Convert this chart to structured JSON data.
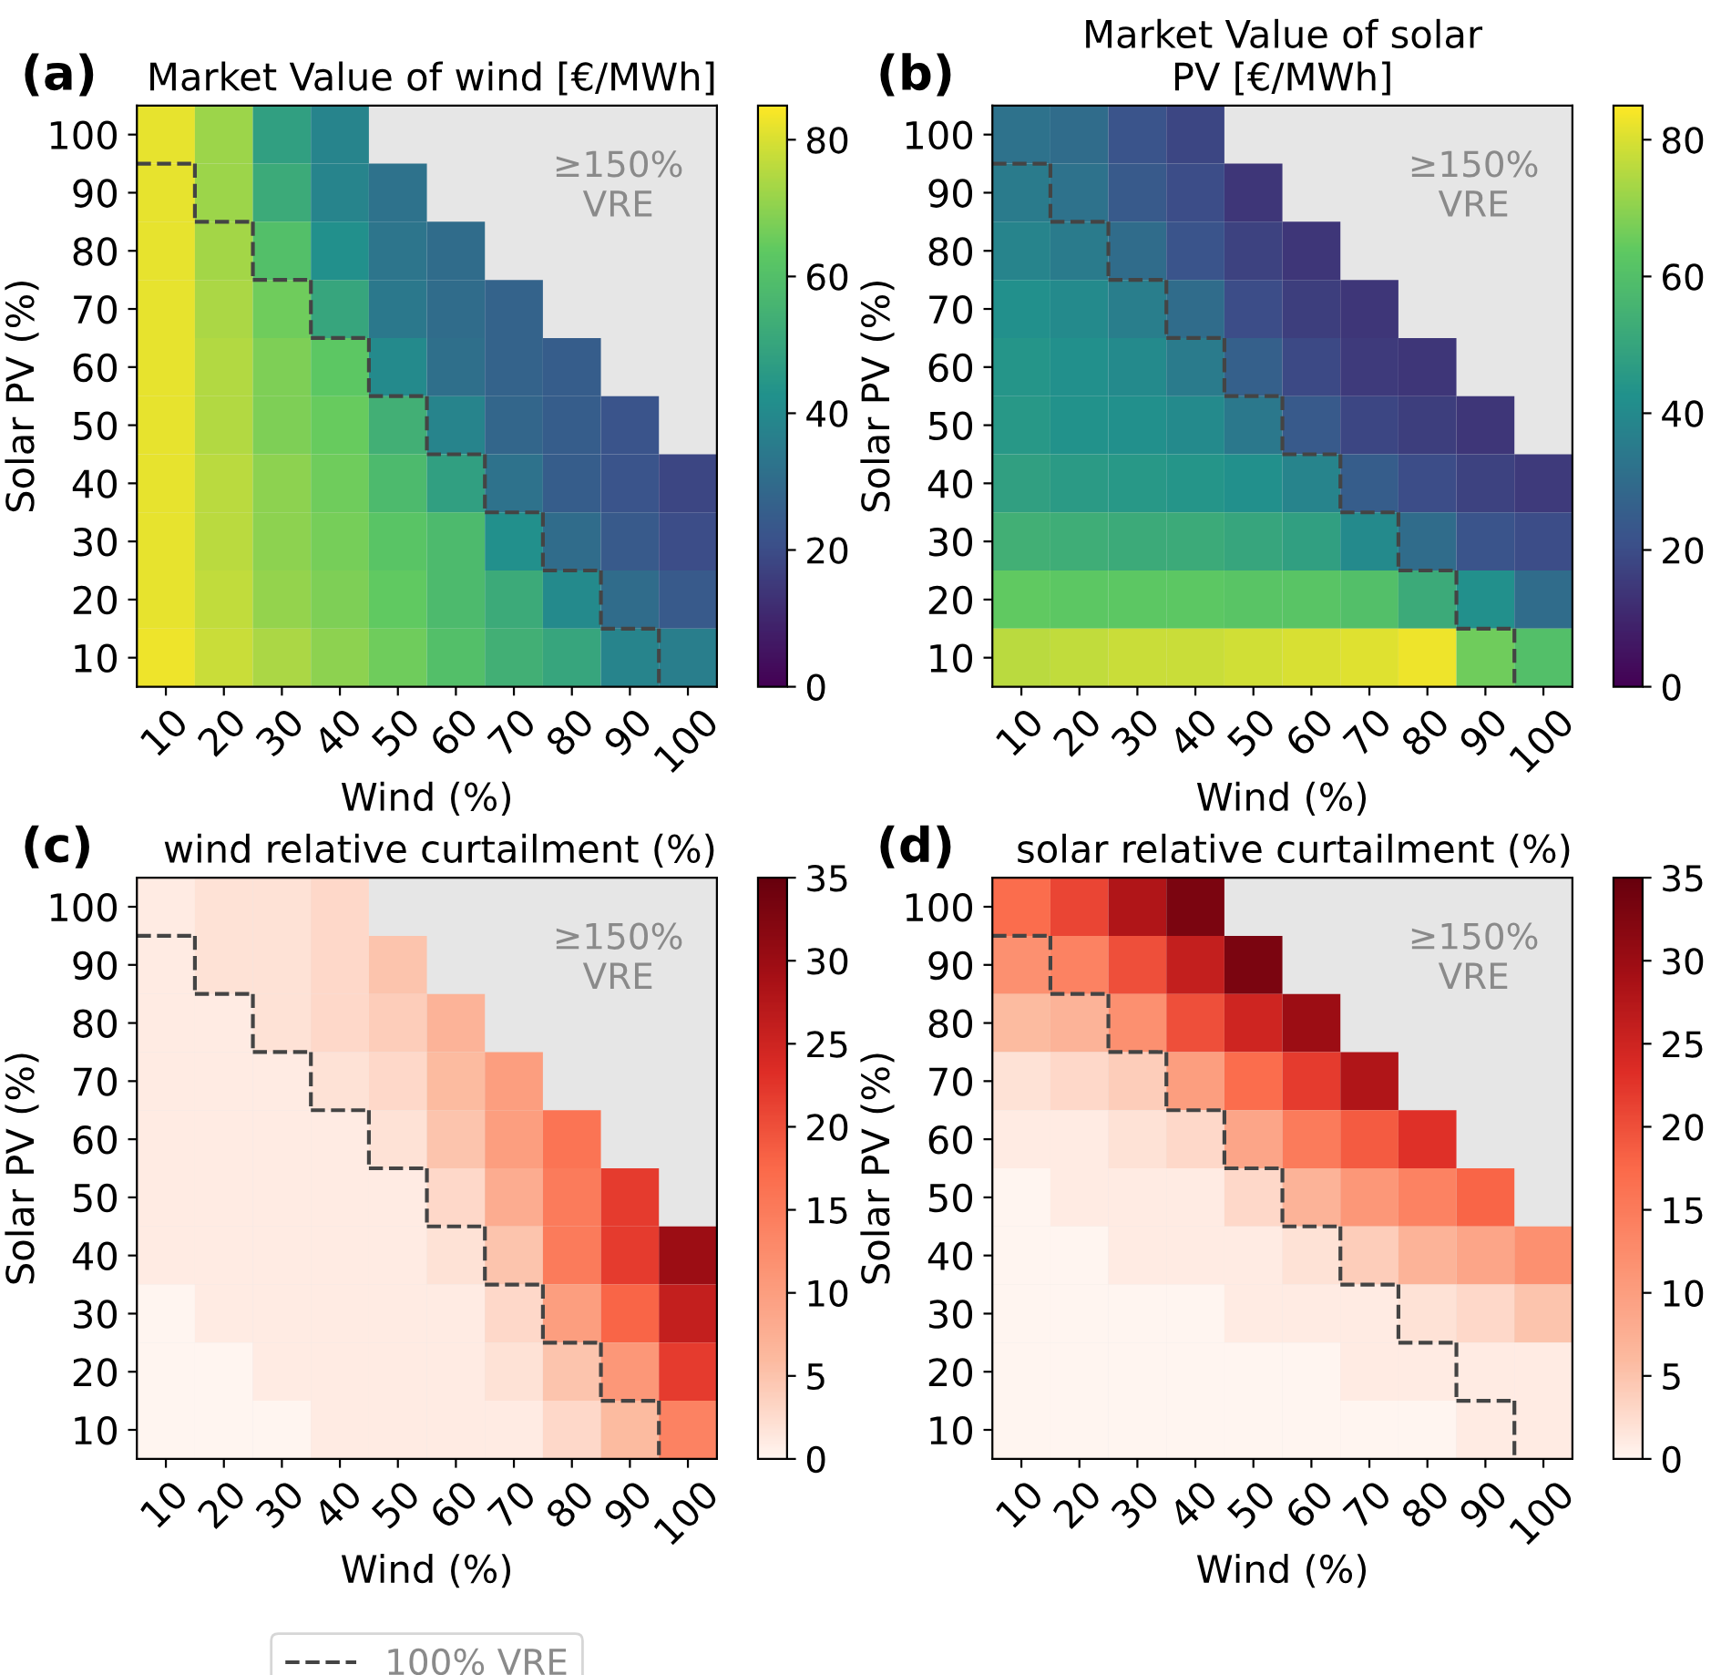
{
  "chart_data": [
    {
      "type": "heatmap",
      "title": "Market Value of wind [€/MWh]",
      "xlabel": "Wind (%)",
      "ylabel": "Solar PV (%)",
      "annotations": [
        "(a)",
        "≥150%\nVRE"
      ],
      "categories": [
        "10",
        "20",
        "30",
        "40",
        "50",
        "60",
        "70",
        "80",
        "90",
        "100"
      ],
      "y_categories": [
        "100",
        "90",
        "80",
        "70",
        "60",
        "50",
        "40",
        "30",
        "20",
        "10"
      ],
      "clim": [
        0,
        85
      ],
      "cticks": [
        0,
        20,
        40,
        60,
        80
      ],
      "colors": [
        "#440154",
        "#3b528b",
        "#21918c",
        "#5ec962",
        "#fde725"
      ],
      "cells": [
        [
          82,
          72,
          48,
          38,
          null,
          null,
          null,
          null,
          null,
          null
        ],
        [
          82,
          72,
          52,
          38,
          32,
          null,
          null,
          null,
          null,
          null
        ],
        [
          82,
          73,
          60,
          42,
          33,
          30,
          null,
          null,
          null,
          null
        ],
        [
          82,
          74,
          66,
          50,
          34,
          30,
          27,
          null,
          null,
          null
        ],
        [
          82,
          75,
          68,
          63,
          40,
          31,
          27,
          25,
          null,
          null
        ],
        [
          82,
          75,
          68,
          65,
          54,
          38,
          28,
          25,
          22,
          null
        ],
        [
          82,
          76,
          70,
          66,
          58,
          48,
          32,
          25,
          22,
          18
        ],
        [
          82,
          76,
          70,
          67,
          62,
          58,
          42,
          30,
          24,
          20
        ],
        [
          82,
          77,
          71,
          68,
          64,
          58,
          52,
          40,
          30,
          24
        ],
        [
          83,
          78,
          74,
          70,
          66,
          60,
          54,
          50,
          38,
          36
        ]
      ],
      "line_style": "dashed"
    },
    {
      "type": "heatmap",
      "title": "Market Value of solar\nPV [€/MWh]",
      "xlabel": "Wind (%)",
      "ylabel": "Solar PV (%)",
      "annotations": [
        "(b)",
        "≥150%\nVRE"
      ],
      "categories": [
        "10",
        "20",
        "30",
        "40",
        "50",
        "60",
        "70",
        "80",
        "90",
        "100"
      ],
      "y_categories": [
        "100",
        "90",
        "80",
        "70",
        "60",
        "50",
        "40",
        "30",
        "20",
        "10"
      ],
      "clim": [
        0,
        85
      ],
      "cticks": [
        0,
        20,
        40,
        60,
        80
      ],
      "colors": [
        "#440154",
        "#3b528b",
        "#21918c",
        "#5ec962",
        "#fde725"
      ],
      "cells": [
        [
          32,
          30,
          22,
          18,
          null,
          null,
          null,
          null,
          null,
          null
        ],
        [
          35,
          32,
          24,
          20,
          14,
          null,
          null,
          null,
          null,
          null
        ],
        [
          38,
          35,
          30,
          22,
          17,
          14,
          null,
          null,
          null,
          null
        ],
        [
          42,
          40,
          36,
          30,
          20,
          16,
          14,
          null,
          null,
          null
        ],
        [
          44,
          42,
          40,
          35,
          26,
          19,
          15,
          14,
          null,
          null
        ],
        [
          45,
          43,
          42,
          40,
          34,
          24,
          18,
          16,
          14,
          null
        ],
        [
          48,
          46,
          45,
          44,
          42,
          38,
          25,
          20,
          17,
          15
        ],
        [
          54,
          53,
          52,
          52,
          50,
          48,
          40,
          30,
          22,
          20
        ],
        [
          64,
          63,
          63,
          63,
          62,
          62,
          60,
          52,
          42,
          30
        ],
        [
          76,
          77,
          78,
          78,
          79,
          80,
          81,
          83,
          66,
          60
        ]
      ],
      "line_style": "dashed"
    },
    {
      "type": "heatmap",
      "title": "wind relative curtailment (%)",
      "xlabel": "Wind (%)",
      "ylabel": "Solar PV (%)",
      "annotations": [
        "(c)",
        "≥150%\nVRE",
        "100% VRE"
      ],
      "categories": [
        "10",
        "20",
        "30",
        "40",
        "50",
        "60",
        "70",
        "80",
        "90",
        "100"
      ],
      "y_categories": [
        "100",
        "90",
        "80",
        "70",
        "60",
        "50",
        "40",
        "30",
        "20",
        "10"
      ],
      "clim": [
        0,
        35
      ],
      "cticks": [
        0,
        5,
        10,
        15,
        20,
        25,
        30,
        35
      ],
      "colors": [
        "#fff5f0",
        "#fcbba1",
        "#fc9272",
        "#fb6a4a",
        "#de2d26",
        "#a50f15",
        "#67000d"
      ],
      "cells": [
        [
          1,
          2,
          2,
          3,
          null,
          null,
          null,
          null,
          null,
          null
        ],
        [
          1,
          2,
          2,
          3,
          5,
          null,
          null,
          null,
          null,
          null
        ],
        [
          1,
          1,
          2,
          3,
          4,
          7,
          null,
          null,
          null,
          null
        ],
        [
          1,
          1,
          1,
          2,
          3,
          6,
          10,
          null,
          null,
          null
        ],
        [
          1,
          1,
          1,
          1,
          2,
          5,
          10,
          16,
          null,
          null
        ],
        [
          1,
          1,
          1,
          1,
          1,
          3,
          8,
          15,
          22,
          null
        ],
        [
          1,
          1,
          1,
          1,
          1,
          2,
          5,
          15,
          22,
          30
        ],
        [
          0,
          1,
          1,
          1,
          1,
          1,
          3,
          10,
          18,
          26
        ],
        [
          0,
          0,
          1,
          1,
          1,
          1,
          2,
          5,
          11,
          22
        ],
        [
          0,
          0,
          0,
          1,
          1,
          1,
          1,
          3,
          6,
          14
        ]
      ],
      "line_style": "dashed"
    },
    {
      "type": "heatmap",
      "title": "solar relative curtailment (%)",
      "xlabel": "Wind (%)",
      "ylabel": "Solar PV (%)",
      "annotations": [
        "(d)",
        "≥150%\nVRE"
      ],
      "categories": [
        "10",
        "20",
        "30",
        "40",
        "50",
        "60",
        "70",
        "80",
        "90",
        "100"
      ],
      "y_categories": [
        "100",
        "90",
        "80",
        "70",
        "60",
        "50",
        "40",
        "30",
        "20",
        "10"
      ],
      "clim": [
        0,
        35
      ],
      "cticks": [
        0,
        5,
        10,
        15,
        20,
        25,
        30,
        35
      ],
      "colors": [
        "#fff5f0",
        "#fcbba1",
        "#fc9272",
        "#fb6a4a",
        "#de2d26",
        "#a50f15",
        "#67000d"
      ],
      "cells": [
        [
          17,
          21,
          28,
          33,
          null,
          null,
          null,
          null,
          null,
          null
        ],
        [
          12,
          14,
          20,
          26,
          33,
          null,
          null,
          null,
          null,
          null
        ],
        [
          6,
          7,
          12,
          20,
          25,
          30,
          null,
          null,
          null,
          null
        ],
        [
          2,
          3,
          4,
          10,
          17,
          22,
          28,
          null,
          null,
          null
        ],
        [
          1,
          1,
          2,
          3,
          9,
          15,
          19,
          23,
          null,
          null
        ],
        [
          0,
          1,
          1,
          1,
          3,
          7,
          11,
          14,
          18,
          null
        ],
        [
          0,
          0,
          1,
          1,
          1,
          2,
          4,
          7,
          9,
          12
        ],
        [
          0,
          0,
          0,
          0,
          1,
          1,
          1,
          2,
          3,
          5
        ],
        [
          0,
          0,
          0,
          0,
          0,
          0,
          1,
          1,
          1,
          1
        ],
        [
          0,
          0,
          0,
          0,
          0,
          0,
          0,
          0,
          1,
          1
        ]
      ],
      "line_style": "dashed"
    }
  ]
}
